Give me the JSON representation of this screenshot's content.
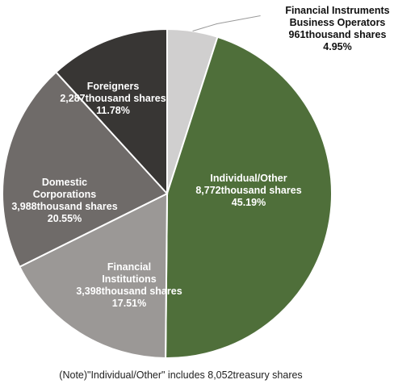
{
  "chart_data": {
    "type": "pie",
    "start": "top",
    "direction": "clockwise",
    "slices": [
      {
        "category": "Financial Instruments Business Operators",
        "label_lines": [
          "Financial Instruments",
          "Business Operators"
        ],
        "shares": "961thousand shares",
        "percent_text": "4.95%",
        "value": 4.95,
        "color": "#d0cfcf",
        "label_color": "#111111",
        "label_position": "outside"
      },
      {
        "category": "Individual/Other",
        "label_lines": [
          "Individual/Other"
        ],
        "shares": "8,772thousand shares",
        "percent_text": "45.19%",
        "value": 45.19,
        "color": "#4f6f3a",
        "label_color": "#ffffff",
        "label_position": "inside"
      },
      {
        "category": "Financial Institutions",
        "label_lines": [
          "Financial",
          "Institutions"
        ],
        "shares": "3,398thousand shares",
        "percent_text": "17.51%",
        "value": 17.51,
        "color": "#9b9896",
        "label_color": "#ffffff",
        "label_position": "inside"
      },
      {
        "category": "Domestic Corporations",
        "label_lines": [
          "Domestic",
          "Corporations"
        ],
        "shares": "3,988thousand shares",
        "percent_text": "20.55%",
        "value": 20.55,
        "color": "#6f6b69",
        "label_color": "#ffffff",
        "label_position": "inside"
      },
      {
        "category": "Foreigners",
        "label_lines": [
          "Foreigners"
        ],
        "shares": "2,287thousand shares",
        "percent_text": "11.78%",
        "value": 11.78,
        "color": "#383634",
        "label_color": "#ffffff",
        "label_position": "inside"
      }
    ],
    "note": "(Note)\"Individual/Other\" includes 8,052treasury shares"
  }
}
